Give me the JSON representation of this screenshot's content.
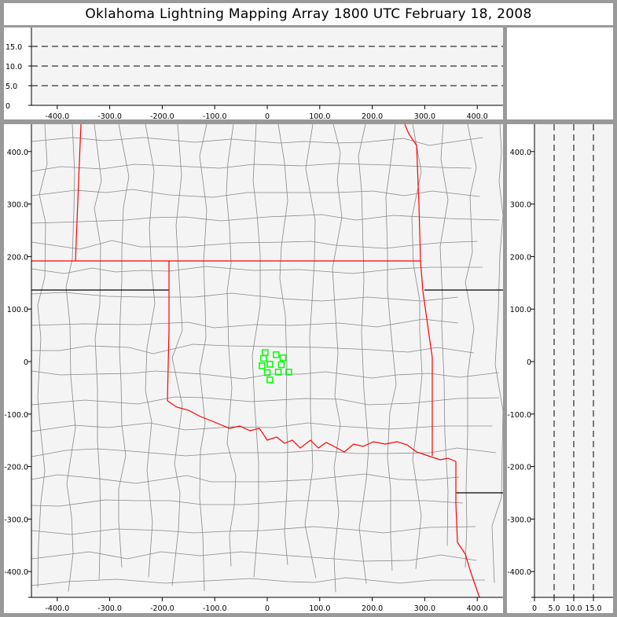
{
  "title": "Oklahoma Lightning Mapping Array   1800 UTC  February 18, 2008",
  "colors": {
    "frame": "#999999",
    "plot_bg": "#f4f4f4",
    "state_border": "#ff0000",
    "county_line": "#888888",
    "source_marker": "#00ff00"
  },
  "plan_view": {
    "x_ticks": [
      "-400.0",
      "-300.0",
      "-200.0",
      "-100.0",
      "0",
      "100.0",
      "200.0",
      "300.0",
      "400.0"
    ],
    "y_ticks": [
      "400.0",
      "300.0",
      "200.0",
      "100.0",
      "0",
      "-100.0",
      "-200.0",
      "-300.0",
      "-400.0"
    ],
    "xlim": [
      -450,
      450
    ],
    "ylim": [
      -450,
      450
    ]
  },
  "altitude_vs_x": {
    "y_ticks": [
      "0",
      "5.0",
      "10.0",
      "15.0"
    ],
    "x_ticks": [
      "-400.0",
      "-300.0",
      "-200.0",
      "-100.0",
      "0",
      "100.0",
      "200.0",
      "300.0",
      "400.0"
    ],
    "dashed_levels": [
      5,
      10,
      15
    ]
  },
  "altitude_vs_y": {
    "x_ticks": [
      "0",
      "5.0",
      "10.0",
      "15.0"
    ],
    "y_ticks": [
      "400.0",
      "300.0",
      "200.0",
      "100.0",
      "0",
      "-100.0",
      "-200.0",
      "-300.0",
      "-400.0"
    ],
    "dashed_levels": [
      5,
      10,
      15
    ]
  },
  "chart_data": {
    "type": "scatter",
    "xlim": [
      -450,
      450
    ],
    "ylim": [
      -450,
      450
    ],
    "points": [
      {
        "x": -4,
        "y": 17
      },
      {
        "x": 17,
        "y": 13
      },
      {
        "x": 30,
        "y": 7
      },
      {
        "x": -7,
        "y": 6
      },
      {
        "x": 5,
        "y": -5
      },
      {
        "x": -10,
        "y": -8
      },
      {
        "x": 27,
        "y": -6
      },
      {
        "x": 0,
        "y": -21
      },
      {
        "x": 21,
        "y": -20
      },
      {
        "x": 41,
        "y": -20
      },
      {
        "x": 5,
        "y": -35
      }
    ]
  }
}
